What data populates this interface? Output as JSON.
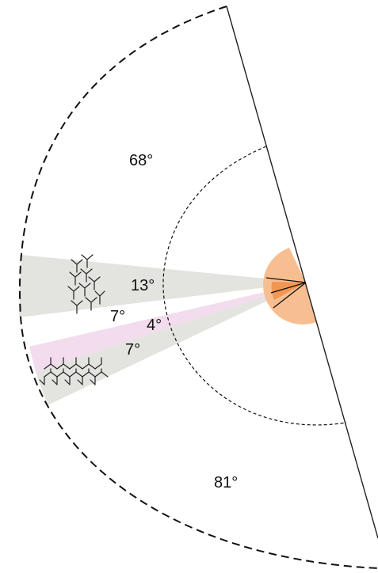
{
  "diagram": {
    "angles": [
      {
        "id": "upper",
        "label": "68°",
        "degrees": 68
      },
      {
        "id": "grey-top",
        "label": "13°",
        "degrees": 13
      },
      {
        "id": "white-gap",
        "label": "7°",
        "degrees": 7
      },
      {
        "id": "pink",
        "label": "4°",
        "degrees": 4
      },
      {
        "id": "grey-bottom",
        "label": "7°",
        "degrees": 7
      },
      {
        "id": "lower",
        "label": "81°",
        "degrees": 81
      }
    ],
    "colors": {
      "grey_sector": "#e3e4df",
      "pink_sector": "#f2dced",
      "orange_sector": "#f7bf91",
      "orange_dark": "#f08c45",
      "line": "#222222"
    },
    "icons": [
      "branched-cluster-icon",
      "fused-ring-chain-icon"
    ]
  }
}
